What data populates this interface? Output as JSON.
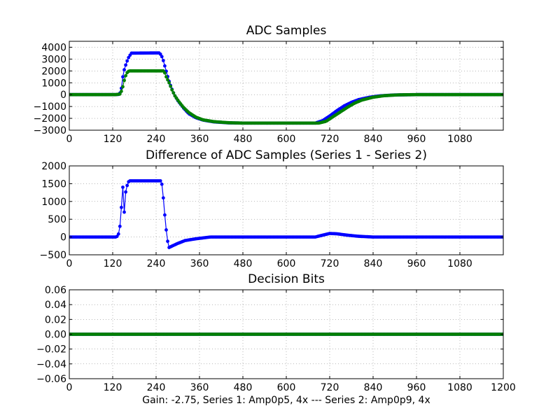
{
  "chart_data": [
    {
      "type": "scatter",
      "title": "ADC Samples",
      "xlabel": "",
      "ylabel": "",
      "xlim": [
        0,
        1200
      ],
      "ylim": [
        -3000,
        4500
      ],
      "xticks": [
        0,
        120,
        240,
        360,
        480,
        600,
        720,
        840,
        960,
        1080
      ],
      "yticks": [
        -3000,
        -2000,
        -1000,
        0,
        1000,
        2000,
        3000,
        4000
      ],
      "grid": true,
      "series": [
        {
          "name": "Series 1",
          "color": "#0000ff",
          "points": [
            [
              0,
              0
            ],
            [
              125,
              0
            ],
            [
              138,
              20
            ],
            [
              143,
              300
            ],
            [
              148,
              1500
            ],
            [
              152,
              2100
            ],
            [
              158,
              2700
            ],
            [
              165,
              3200
            ],
            [
              172,
              3500
            ],
            [
              250,
              3520
            ],
            [
              258,
              3100
            ],
            [
              266,
              2200
            ],
            [
              274,
              1300
            ],
            [
              282,
              600
            ],
            [
              290,
              0
            ],
            [
              300,
              -500
            ],
            [
              315,
              -1100
            ],
            [
              330,
              -1600
            ],
            [
              350,
              -1950
            ],
            [
              370,
              -2150
            ],
            [
              400,
              -2300
            ],
            [
              440,
              -2380
            ],
            [
              480,
              -2400
            ],
            [
              600,
              -2400
            ],
            [
              680,
              -2400
            ],
            [
              700,
              -2200
            ],
            [
              720,
              -1800
            ],
            [
              740,
              -1350
            ],
            [
              760,
              -950
            ],
            [
              780,
              -650
            ],
            [
              800,
              -420
            ],
            [
              830,
              -220
            ],
            [
              860,
              -100
            ],
            [
              900,
              -30
            ],
            [
              960,
              0
            ],
            [
              1200,
              0
            ]
          ]
        },
        {
          "name": "Series 2",
          "color": "#008000",
          "points": [
            [
              0,
              0
            ],
            [
              128,
              0
            ],
            [
              140,
              50
            ],
            [
              146,
              400
            ],
            [
              152,
              1200
            ],
            [
              158,
              1800
            ],
            [
              165,
              2000
            ],
            [
              262,
              2000
            ],
            [
              268,
              1500
            ],
            [
              276,
              1000
            ],
            [
              284,
              400
            ],
            [
              292,
              -100
            ],
            [
              302,
              -550
            ],
            [
              315,
              -1050
            ],
            [
              330,
              -1500
            ],
            [
              350,
              -1900
            ],
            [
              370,
              -2130
            ],
            [
              400,
              -2280
            ],
            [
              440,
              -2370
            ],
            [
              480,
              -2400
            ],
            [
              600,
              -2400
            ],
            [
              690,
              -2400
            ],
            [
              710,
              -2250
            ],
            [
              730,
              -1850
            ],
            [
              750,
              -1450
            ],
            [
              770,
              -1050
            ],
            [
              790,
              -700
            ],
            [
              810,
              -450
            ],
            [
              840,
              -220
            ],
            [
              870,
              -90
            ],
            [
              910,
              -20
            ],
            [
              960,
              0
            ],
            [
              1200,
              0
            ]
          ]
        }
      ]
    },
    {
      "type": "scatter",
      "title": "Difference of ADC Samples (Series 1 - Series 2)",
      "xlabel": "",
      "ylabel": "",
      "xlim": [
        0,
        1200
      ],
      "ylim": [
        -500,
        2000
      ],
      "xticks": [
        0,
        120,
        240,
        360,
        480,
        600,
        720,
        840,
        960,
        1080
      ],
      "yticks": [
        -500,
        0,
        500,
        1000,
        1500,
        2000
      ],
      "grid": true,
      "series": [
        {
          "name": "Series 1 - Series 2",
          "color": "#0000ff",
          "points": [
            [
              0,
              0
            ],
            [
              128,
              0
            ],
            [
              135,
              30
            ],
            [
              140,
              300
            ],
            [
              143,
              700
            ],
            [
              146,
              1100
            ],
            [
              148,
              1400
            ],
            [
              150,
              900
            ],
            [
              152,
              700
            ],
            [
              154,
              1200
            ],
            [
              157,
              1300
            ],
            [
              160,
              1450
            ],
            [
              165,
              1580
            ],
            [
              255,
              1580
            ],
            [
              260,
              1100
            ],
            [
              265,
              500
            ],
            [
              270,
              0
            ],
            [
              275,
              -300
            ],
            [
              285,
              -250
            ],
            [
              300,
              -180
            ],
            [
              320,
              -100
            ],
            [
              350,
              -50
            ],
            [
              390,
              0
            ],
            [
              680,
              0
            ],
            [
              700,
              50
            ],
            [
              720,
              100
            ],
            [
              740,
              90
            ],
            [
              770,
              50
            ],
            [
              800,
              20
            ],
            [
              840,
              0
            ],
            [
              1200,
              0
            ]
          ]
        }
      ]
    },
    {
      "type": "scatter",
      "title": "Decision Bits",
      "xlabel": "Gain: -2.75, Series 1: Amp0p5, 4x --- Series 2: Amp0p9, 4x",
      "ylabel": "",
      "xlim": [
        0,
        1200
      ],
      "ylim": [
        -0.06,
        0.06
      ],
      "xticks": [
        0,
        120,
        240,
        360,
        480,
        600,
        720,
        840,
        960,
        1080,
        1200
      ],
      "yticks": [
        -0.06,
        -0.04,
        -0.02,
        0.0,
        0.02,
        0.04,
        0.06
      ],
      "yticklabels": [
        "−0.06",
        "−0.04",
        "−0.02",
        "0.00",
        "0.02",
        "0.04",
        "0.06"
      ],
      "grid": true,
      "series": [
        {
          "name": "Series 1",
          "color": "#0000ff",
          "points": [
            [
              0,
              0
            ],
            [
              1200,
              0
            ]
          ]
        },
        {
          "name": "Series 2",
          "color": "#008000",
          "points": [
            [
              0,
              0
            ],
            [
              1200,
              0
            ]
          ]
        }
      ]
    }
  ]
}
